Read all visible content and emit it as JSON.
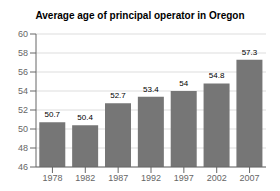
{
  "chart_data": {
    "type": "bar",
    "title": "Average age of principal operator in Oregon",
    "categories": [
      "1978",
      "1982",
      "1987",
      "1992",
      "1997",
      "2002",
      "2007"
    ],
    "values": [
      50.7,
      50.4,
      52.7,
      53.4,
      54,
      54.8,
      57.3
    ],
    "color": "#767676",
    "ylim": [
      46,
      60
    ],
    "yticks": [
      46,
      48,
      50,
      52,
      54,
      56,
      58,
      60
    ],
    "grid": true,
    "data_labels": true
  }
}
